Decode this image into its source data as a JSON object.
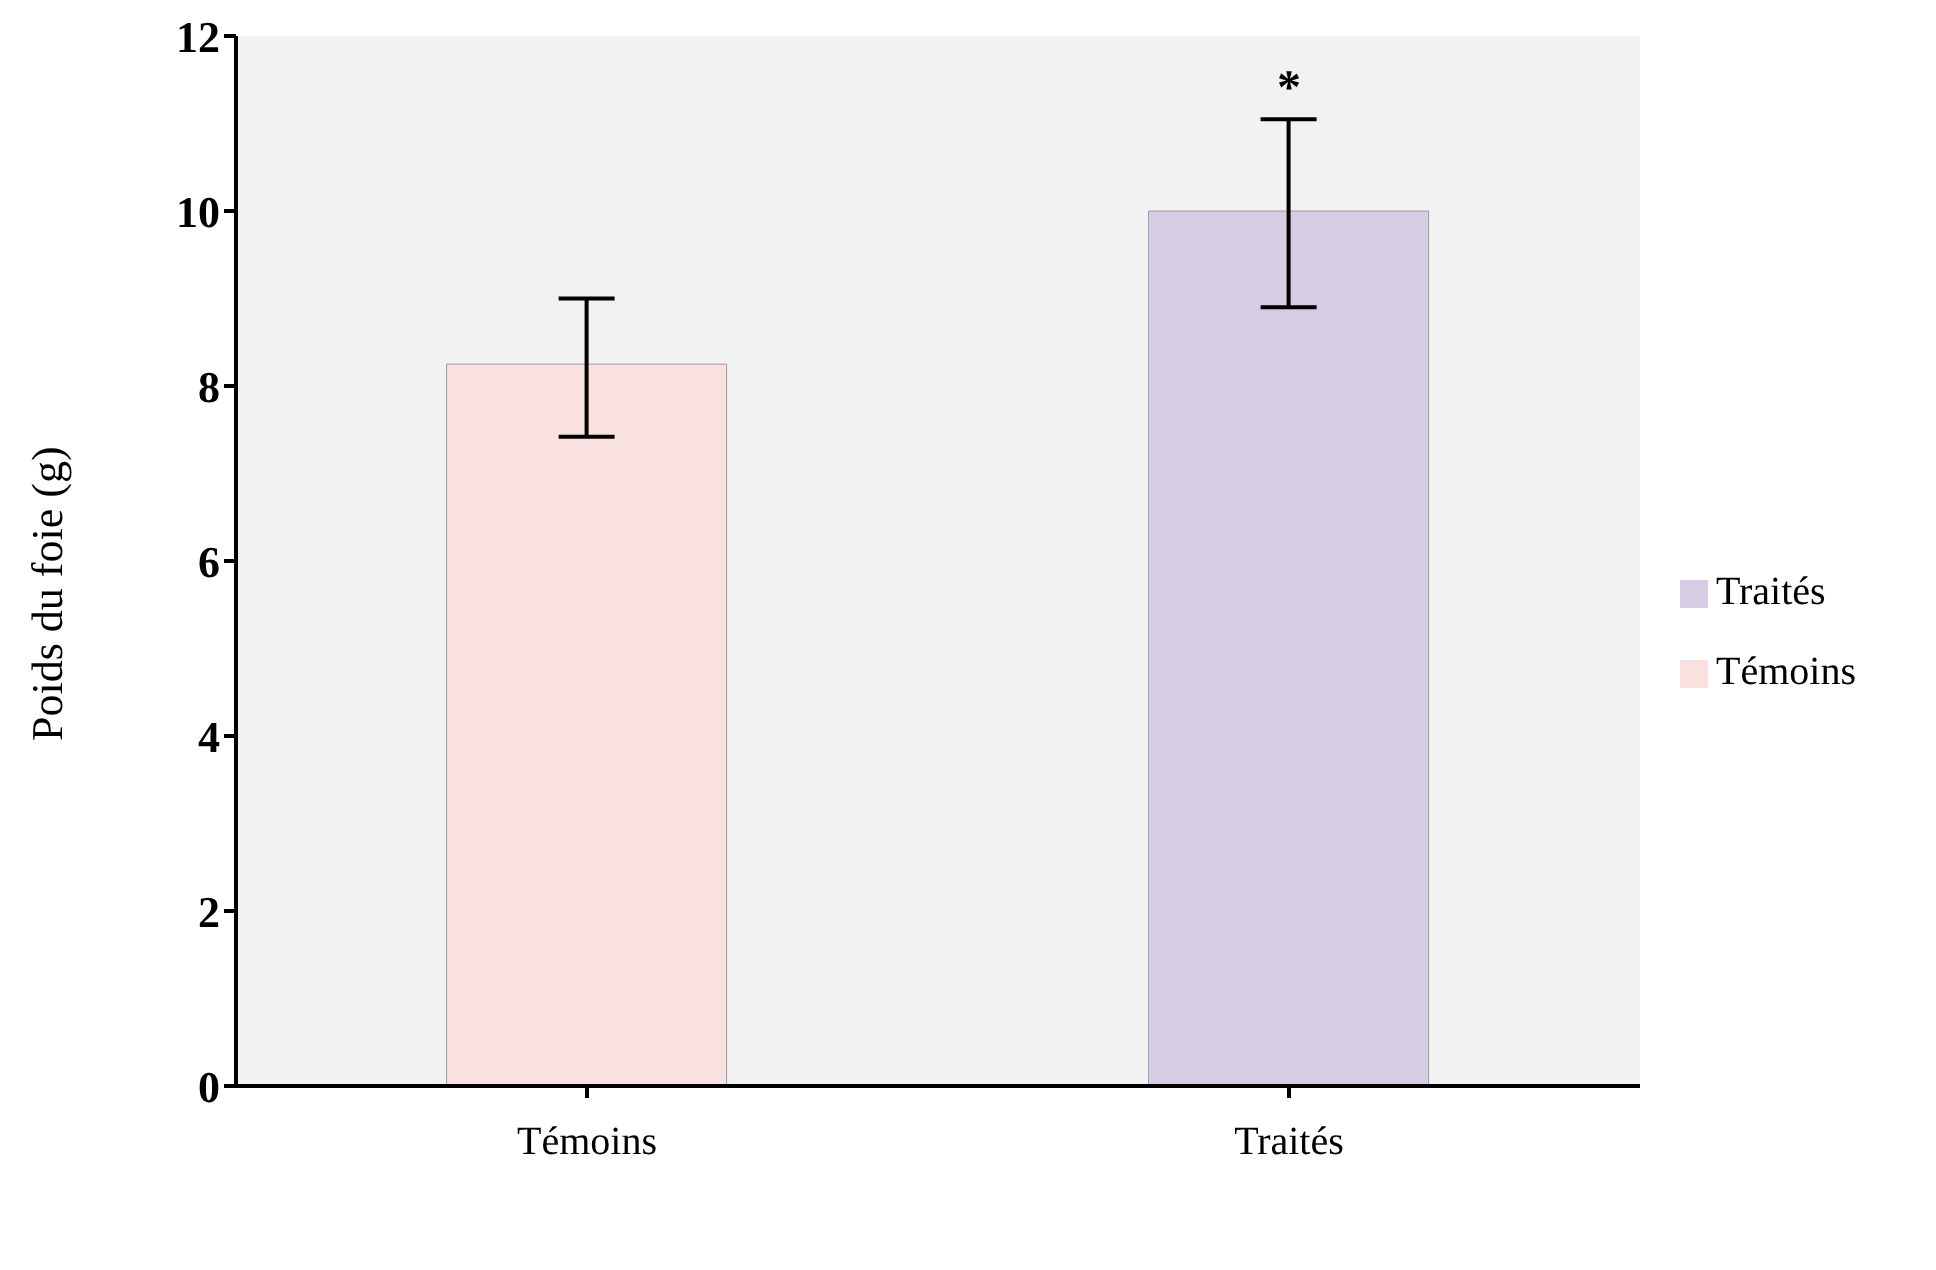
{
  "chart_data": {
    "type": "bar",
    "ylabel": "Poids du foie (g)",
    "categories": [
      "Témoins",
      "Traités"
    ],
    "stacked": true,
    "series": [
      {
        "name": "Témoins",
        "color": "#f9e1df",
        "values": [
          8.25,
          null
        ],
        "errors": [
          [
            7.42,
            9.0
          ],
          null
        ]
      },
      {
        "name": "Traités",
        "color": "#d6cde4",
        "values": [
          null,
          10.0
        ],
        "errors": [
          null,
          [
            8.9,
            11.05
          ]
        ]
      }
    ],
    "ylim": [
      0,
      12
    ],
    "yticks": [
      0,
      2,
      4,
      6,
      8,
      10,
      12
    ],
    "grid": false,
    "legend": "right",
    "annotations": [
      {
        "text": "*",
        "x": "Traités",
        "y": 11.05
      }
    ]
  }
}
